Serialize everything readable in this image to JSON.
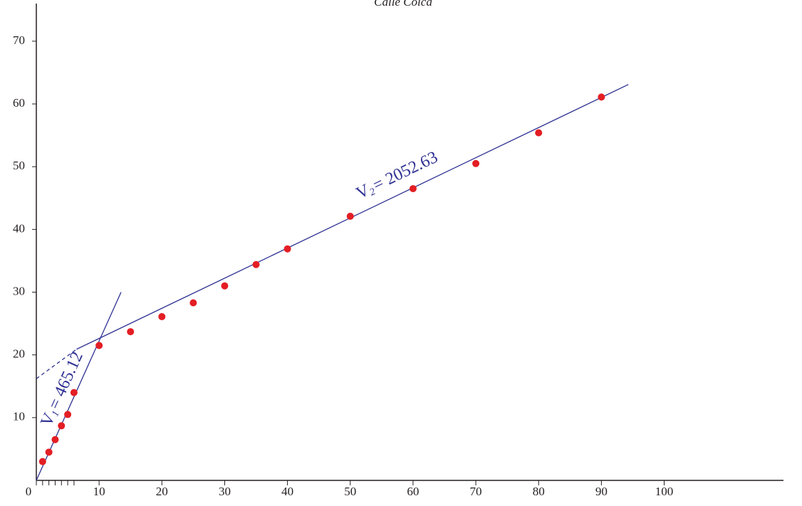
{
  "chart_data": {
    "type": "scatter",
    "title": "Calle Colca",
    "xlim": [
      0,
      119
    ],
    "ylim": [
      0,
      76
    ],
    "xticks": [
      0,
      10,
      20,
      30,
      40,
      50,
      60,
      70,
      80,
      90,
      100
    ],
    "xminorticks": [
      1,
      2,
      3,
      4,
      5,
      6
    ],
    "yticks": [
      10,
      20,
      30,
      40,
      50,
      60,
      70
    ],
    "series": [
      {
        "color": "#e31e24",
        "x": [
          1,
          2,
          3,
          4,
          5,
          6,
          10,
          15,
          20,
          25,
          30,
          35,
          40,
          50,
          60,
          70,
          80,
          90
        ],
        "values": [
          3,
          4.5,
          6.5,
          8.7,
          10.5,
          14,
          21.5,
          23.7,
          26.1,
          28.3,
          31,
          34.4,
          36.9,
          42.1,
          46.5,
          50.5,
          55.4,
          61.1
        ]
      }
    ],
    "fit_lines": [
      {
        "color": "#2e3192",
        "x": [
          0,
          13.5
        ],
        "values": [
          0,
          30
        ]
      },
      {
        "color": "#2e3192",
        "x": [
          6.4,
          94.3
        ],
        "values": [
          20.9,
          63.1
        ]
      },
      {
        "color": "#2e3192",
        "dashed": true,
        "x": [
          0,
          6.4
        ],
        "values": [
          16.2,
          20.9
        ]
      }
    ],
    "annotations": [
      {
        "prefix": "V",
        "subscript": "1",
        "text": "= 465.12",
        "color": "#2e3192",
        "x": 4.2,
        "y": 14.5,
        "angle": -65.8
      },
      {
        "prefix": "V",
        "subscript": "2",
        "text": "= 2052.63",
        "color": "#2e3192",
        "x": 57.5,
        "y": 48.5,
        "angle": -25.8
      }
    ]
  }
}
